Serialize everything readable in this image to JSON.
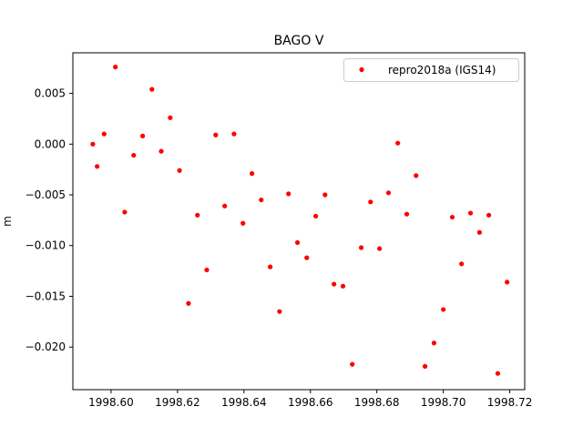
{
  "chart_data": {
    "type": "scatter",
    "title": "BAGO V",
    "xlabel": "",
    "ylabel": "m",
    "xlim": [
      1998.5885,
      1998.7245
    ],
    "ylim": [
      -0.0242,
      0.009
    ],
    "xticks": [
      1998.6,
      1998.62,
      1998.64,
      1998.66,
      1998.68,
      1998.7,
      1998.72
    ],
    "xtick_labels": [
      "1998.60",
      "1998.62",
      "1998.64",
      "1998.66",
      "1998.68",
      "1998.70",
      "1998.72"
    ],
    "yticks": [
      0.005,
      0.0,
      -0.005,
      -0.01,
      -0.015,
      -0.02
    ],
    "ytick_labels": [
      "0.005",
      "0.000",
      "−0.005",
      "−0.010",
      "−0.015",
      "−0.020"
    ],
    "grid": false,
    "legend_position": "top-right",
    "series": [
      {
        "name": "repro2018a (IGS14)",
        "color": "#ff0000",
        "marker": "circle",
        "x": [
          1998.5945,
          1998.5958,
          1998.5979,
          1998.6013,
          1998.6041,
          1998.6068,
          1998.6095,
          1998.6123,
          1998.6151,
          1998.6178,
          1998.6206,
          1998.6233,
          1998.626,
          1998.6288,
          1998.6315,
          1998.6342,
          1998.637,
          1998.6397,
          1998.6424,
          1998.6452,
          1998.6479,
          1998.6507,
          1998.6534,
          1998.6561,
          1998.6589,
          1998.6616,
          1998.6644,
          1998.6671,
          1998.6698,
          1998.6726,
          1998.6753,
          1998.6781,
          1998.6808,
          1998.6835,
          1998.6863,
          1998.689,
          1998.6918,
          1998.6945,
          1998.6972,
          1998.7,
          1998.7027,
          1998.7055,
          1998.7082,
          1998.7109,
          1998.7137,
          1998.7164,
          1998.7192
        ],
        "y": [
          0.0,
          -0.0022,
          0.001,
          0.0076,
          -0.0067,
          -0.0011,
          0.0008,
          0.0054,
          -0.0007,
          0.0026,
          -0.0026,
          -0.0157,
          -0.007,
          -0.0124,
          0.0009,
          -0.0061,
          0.001,
          -0.0078,
          -0.0029,
          -0.0055,
          -0.0121,
          -0.0165,
          -0.0049,
          -0.0097,
          -0.0112,
          -0.0071,
          -0.005,
          -0.0138,
          -0.014,
          -0.0217,
          -0.0102,
          -0.0057,
          -0.0103,
          -0.0048,
          0.0001,
          -0.0069,
          -0.0031,
          -0.0219,
          -0.0196,
          -0.0163,
          -0.0072,
          -0.0118,
          -0.0068,
          -0.0087,
          -0.007,
          -0.0226,
          -0.0136
        ]
      }
    ]
  }
}
